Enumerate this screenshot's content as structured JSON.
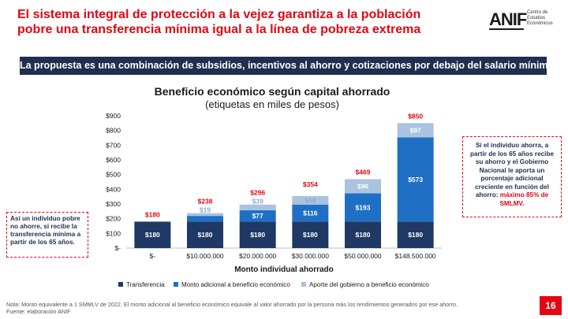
{
  "title": "El sistema integral de protección a la vejez garantiza a la población pobre una transferencia mínima igual a la línea de pobreza extrema",
  "logo": {
    "mark": "ANIF",
    "subtitle": "Centro de Estudios Económicos"
  },
  "banner": "La propuesta es una combinación de subsidios, incentivos al ahorro y cotizaciones por debajo del salario mínimo",
  "colors": {
    "transferencia": "#1f3864",
    "monto": "#1f6fc5",
    "aporte": "#a9c3e0",
    "accent": "#e30613",
    "banner": "#1f2f4e"
  },
  "chart_data": {
    "type": "bar",
    "stacked": true,
    "title": "Beneficio económico según capital ahorrado",
    "subtitle": "(etiquetas en miles de pesos)",
    "xlabel": "Monto individual ahorrado",
    "ylabel": "",
    "categories": [
      "$-",
      "$10.000.000",
      "$20.000.000",
      "$30.000.000",
      "$50.000.000",
      "$148.500.000"
    ],
    "ylim": [
      0,
      900
    ],
    "yticks": [
      0,
      100,
      200,
      300,
      400,
      500,
      600,
      700,
      800,
      900
    ],
    "ytick_labels": [
      "$-",
      "$100",
      "$200",
      "$300",
      "$400",
      "$500",
      "$600",
      "$700",
      "$800",
      "$900"
    ],
    "series": [
      {
        "name": "Transferencia",
        "values": [
          180,
          180,
          180,
          180,
          180,
          180
        ],
        "labels": [
          "$180",
          "$180",
          "$180",
          "$180",
          "$180",
          "$180"
        ]
      },
      {
        "name": "Monto adicional a beneficio económico",
        "values": [
          0,
          39,
          77,
          116,
          193,
          573
        ],
        "labels": [
          "",
          "$39",
          "$77",
          "$116",
          "$193",
          "$573"
        ]
      },
      {
        "name": "Aporte del gobierno a beneficio económico",
        "values": [
          0,
          19,
          39,
          58,
          96,
          97
        ],
        "labels": [
          "",
          "$19",
          "$39",
          "$58",
          "$96",
          "$97"
        ]
      }
    ],
    "totals": [
      180,
      238,
      296,
      354,
      469,
      850
    ],
    "total_labels": [
      "$180",
      "$238",
      "$296",
      "$354",
      "$469",
      "$850"
    ],
    "grid": false,
    "legend_position": "bottom"
  },
  "callout_left": "Así un individuo pobre no ahorre, si recibe la transferencia mínima a partir de los 65 años.",
  "callout_right": {
    "text": "Si el individuo ahorra, a partir de los 65 años recibe su ahorro y el Gobierno Nacional le aporta un porcentaje adicional creciente en función del ahorro:",
    "highlight": "máximo 85% de SMLMV."
  },
  "footnote": "Nota: Monto equivalente a 1 SMMLV de 2022. El monto adicional al beneficio económico equivale al valor ahorrado por la persona más los rendimientos generados por ese ahorro.",
  "source": "Fuente: elaboración ANIF",
  "page_number": "16"
}
